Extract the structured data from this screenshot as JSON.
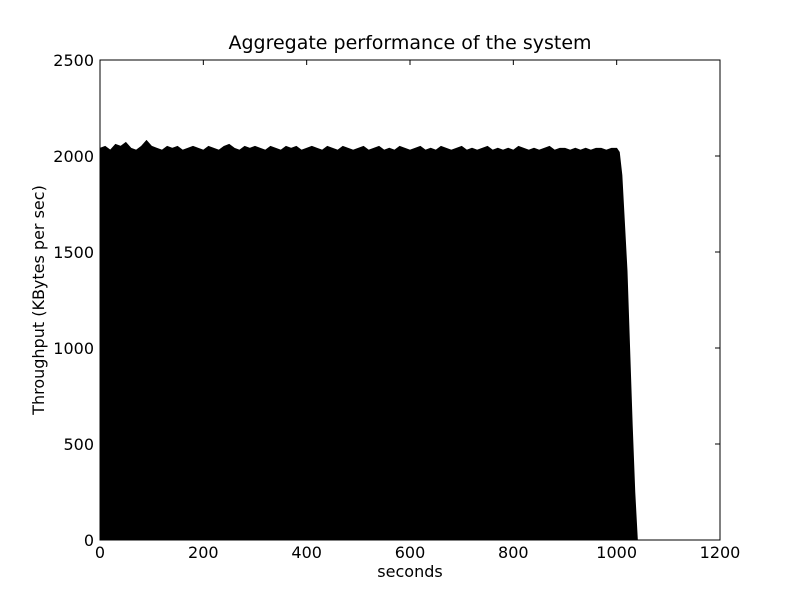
{
  "chart_data": {
    "type": "area",
    "title": "Aggregate performance of the system",
    "xlabel": "seconds",
    "ylabel": "Throughput (KBytes per sec)",
    "xlim": [
      0,
      1200
    ],
    "ylim": [
      0,
      2500
    ],
    "xticks": [
      0,
      200,
      400,
      600,
      800,
      1000,
      1200
    ],
    "yticks": [
      0,
      500,
      1000,
      1500,
      2000,
      2500
    ],
    "grid": false,
    "legend": "none",
    "colors": {
      "series": "#000000",
      "axes": "#000000",
      "background": "#ffffff"
    },
    "series": [
      {
        "x": [
          0,
          10,
          20,
          30,
          40,
          50,
          60,
          70,
          80,
          90,
          100,
          110,
          120,
          130,
          140,
          150,
          160,
          170,
          180,
          190,
          200,
          210,
          220,
          230,
          240,
          250,
          260,
          270,
          280,
          290,
          300,
          310,
          320,
          330,
          340,
          350,
          360,
          370,
          380,
          390,
          400,
          410,
          420,
          430,
          440,
          450,
          460,
          470,
          480,
          490,
          500,
          510,
          520,
          530,
          540,
          550,
          560,
          570,
          580,
          590,
          600,
          610,
          620,
          630,
          640,
          650,
          660,
          670,
          680,
          690,
          700,
          710,
          720,
          730,
          740,
          750,
          760,
          770,
          780,
          790,
          800,
          810,
          820,
          830,
          840,
          850,
          860,
          870,
          880,
          890,
          900,
          910,
          920,
          930,
          940,
          950,
          960,
          970,
          980,
          990,
          1000,
          1005,
          1010,
          1015,
          1020,
          1025,
          1030,
          1035,
          1040,
          1045
        ],
        "y": [
          2040,
          2050,
          2030,
          2060,
          2050,
          2070,
          2040,
          2030,
          2050,
          2080,
          2050,
          2040,
          2030,
          2050,
          2040,
          2050,
          2030,
          2040,
          2050,
          2040,
          2030,
          2050,
          2040,
          2030,
          2050,
          2060,
          2040,
          2030,
          2050,
          2040,
          2050,
          2040,
          2030,
          2050,
          2040,
          2030,
          2050,
          2040,
          2050,
          2030,
          2040,
          2050,
          2040,
          2030,
          2050,
          2040,
          2030,
          2050,
          2040,
          2030,
          2040,
          2050,
          2030,
          2040,
          2050,
          2030,
          2040,
          2030,
          2050,
          2040,
          2030,
          2040,
          2050,
          2030,
          2040,
          2030,
          2050,
          2040,
          2030,
          2040,
          2050,
          2030,
          2040,
          2030,
          2040,
          2050,
          2030,
          2040,
          2030,
          2040,
          2030,
          2050,
          2040,
          2030,
          2040,
          2030,
          2040,
          2050,
          2030,
          2040,
          2040,
          2030,
          2040,
          2030,
          2040,
          2030,
          2040,
          2040,
          2030,
          2040,
          2040,
          2020,
          1900,
          1650,
          1400,
          1000,
          600,
          250,
          0,
          0
        ]
      }
    ]
  }
}
